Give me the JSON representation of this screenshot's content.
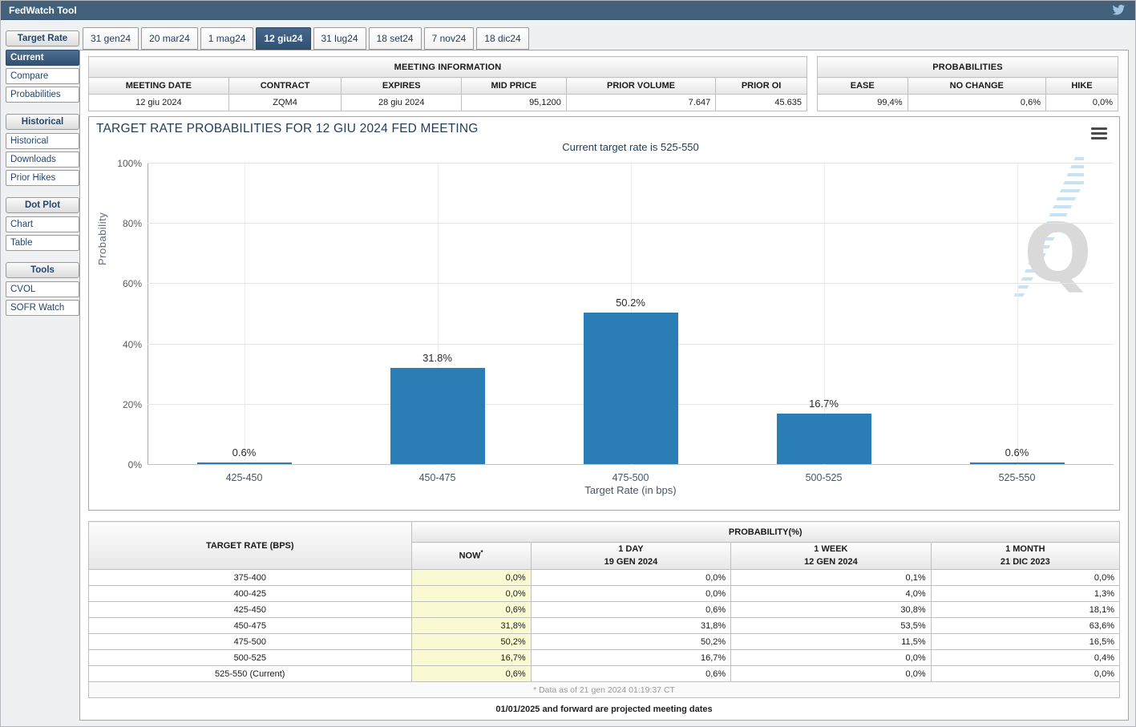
{
  "header": {
    "title": "FedWatch Tool"
  },
  "tabs": [
    {
      "label": "31 gen24",
      "selected": false
    },
    {
      "label": "20 mar24",
      "selected": false
    },
    {
      "label": "1 mag24",
      "selected": false
    },
    {
      "label": "12 giu24",
      "selected": true
    },
    {
      "label": "31 lug24",
      "selected": false
    },
    {
      "label": "18 set24",
      "selected": false
    },
    {
      "label": "7 nov24",
      "selected": false
    },
    {
      "label": "18 dic24",
      "selected": false
    }
  ],
  "sidebar": {
    "sections": [
      {
        "header": "Target Rate",
        "items": [
          {
            "label": "Current",
            "selected": true
          },
          {
            "label": "Compare",
            "selected": false
          },
          {
            "label": "Probabilities",
            "selected": false
          }
        ]
      },
      {
        "header": "Historical",
        "items": [
          {
            "label": "Historical",
            "selected": false
          },
          {
            "label": "Downloads",
            "selected": false
          },
          {
            "label": "Prior Hikes",
            "selected": false
          }
        ]
      },
      {
        "header": "Dot Plot",
        "items": [
          {
            "label": "Chart",
            "selected": false
          },
          {
            "label": "Table",
            "selected": false
          }
        ]
      },
      {
        "header": "Tools",
        "items": [
          {
            "label": "CVOL",
            "selected": false
          },
          {
            "label": "SOFR Watch",
            "selected": false
          }
        ]
      }
    ]
  },
  "meeting_info": {
    "title": "MEETING INFORMATION",
    "columns": [
      "MEETING DATE",
      "CONTRACT",
      "EXPIRES",
      "MID PRICE",
      "PRIOR VOLUME",
      "PRIOR OI"
    ],
    "values": [
      "12 giu 2024",
      "ZQM4",
      "28 giu 2024",
      "95,1200",
      "7.647",
      "45.635"
    ],
    "aligns": [
      "center",
      "center",
      "center",
      "right",
      "right",
      "right"
    ],
    "col_widths": [
      "19.5%",
      "15.7%",
      "16.7%",
      "14.6%",
      "20.8%",
      "12.7%"
    ]
  },
  "probabilities_summary": {
    "title": "PROBABILITIES",
    "columns": [
      "EASE",
      "NO CHANGE",
      "HIKE"
    ],
    "values": [
      "99,4%",
      "0,6%",
      "0,0%"
    ],
    "col_widths": [
      "30%",
      "46%",
      "24%"
    ]
  },
  "chart": {
    "title": "TARGET RATE PROBABILITIES FOR 12 GIU 2024 FED MEETING",
    "subtitle": "Current target rate is 525-550",
    "menu_icon": "hamburger-menu-icon"
  },
  "chart_data": {
    "type": "bar",
    "categories": [
      "425-450",
      "450-475",
      "475-500",
      "500-525",
      "525-550"
    ],
    "values": [
      0.6,
      31.8,
      50.2,
      16.7,
      0.6
    ],
    "labels": [
      "0.6%",
      "31.8%",
      "50.2%",
      "16.7%",
      "0.6%"
    ],
    "title": "TARGET RATE PROBABILITIES FOR 12 GIU 2024 FED MEETING",
    "subtitle": "Current target rate is 525-550",
    "xlabel": "Target Rate (in bps)",
    "ylabel": "Probability",
    "ylim": [
      0,
      100
    ],
    "yticks": [
      "0%",
      "20%",
      "40%",
      "60%",
      "80%",
      "100%"
    ],
    "grid": true,
    "legend": "none",
    "bar_color": "#2A7EB5"
  },
  "probability_table": {
    "rate_header": "TARGET RATE (BPS)",
    "group_header": "PROBABILITY(%)",
    "columns": [
      {
        "label": "NOW",
        "sup": "*",
        "sub": ""
      },
      {
        "label": "1 DAY",
        "sub": "19 GEN 2024"
      },
      {
        "label": "1 WEEK",
        "sub": "12 GEN 2024"
      },
      {
        "label": "1 MONTH",
        "sub": "21 DIC 2023"
      }
    ],
    "rows": [
      {
        "rate": "375-400",
        "now": "0,0%",
        "day": "0,0%",
        "week": "0,1%",
        "month": "0,0%"
      },
      {
        "rate": "400-425",
        "now": "0,0%",
        "day": "0,0%",
        "week": "4,0%",
        "month": "1,3%"
      },
      {
        "rate": "425-450",
        "now": "0,6%",
        "day": "0,6%",
        "week": "30,8%",
        "month": "18,1%"
      },
      {
        "rate": "450-475",
        "now": "31,8%",
        "day": "31,8%",
        "week": "53,5%",
        "month": "63,6%"
      },
      {
        "rate": "475-500",
        "now": "50,2%",
        "day": "50,2%",
        "week": "11,5%",
        "month": "16,5%"
      },
      {
        "rate": "500-525",
        "now": "16,7%",
        "day": "16,7%",
        "week": "0,0%",
        "month": "0,4%"
      },
      {
        "rate": "525-550 (Current)",
        "now": "0,6%",
        "day": "0,6%",
        "week": "0,0%",
        "month": "0,0%"
      }
    ],
    "footnote": "* Data as of 21 gen 2024 01:19:37 CT"
  },
  "footer_note": "01/01/2025 and forward are projected meeting dates",
  "colors": {
    "topbar": "#44617C",
    "selected": "#2F5174",
    "bar": "#2A7EB5",
    "now_column": "#FAFAD2",
    "title_navy": "#1E3C5C"
  }
}
